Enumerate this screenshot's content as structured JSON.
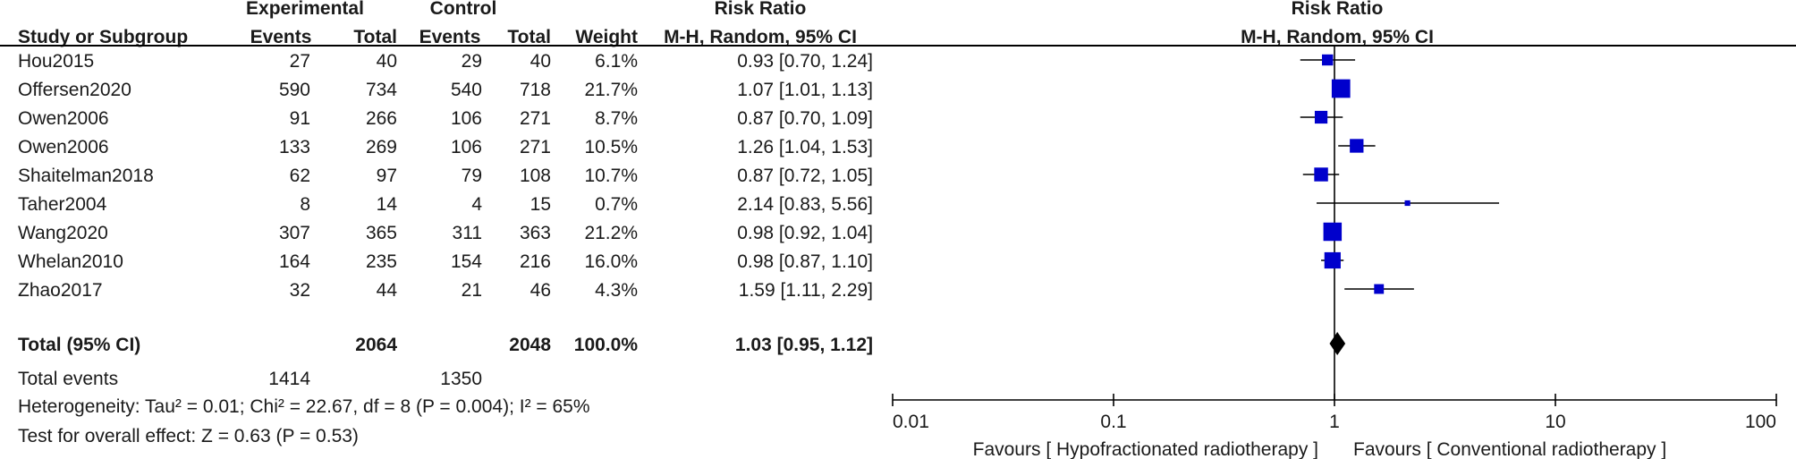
{
  "chart_data": {
    "type": "forest",
    "headers": {
      "study": "Study or Subgroup",
      "experimental_group": "Experimental",
      "control_group": "Control",
      "events": "Events",
      "total": "Total",
      "weight": "Weight",
      "rr_title": "Risk Ratio",
      "rr_method": "M-H, Random, 95% CI",
      "plot_title": "Risk Ratio",
      "plot_method": "M-H, Random, 95% CI"
    },
    "studies": [
      {
        "name": "Hou2015",
        "exp_events": "27",
        "exp_total": "40",
        "ctl_events": "29",
        "ctl_total": "40",
        "weight": "6.1%",
        "ci_text": "0.93 [0.70, 1.24]",
        "rr": 0.93,
        "lo": 0.7,
        "hi": 1.24,
        "w": 6.1
      },
      {
        "name": "Offersen2020",
        "exp_events": "590",
        "exp_total": "734",
        "ctl_events": "540",
        "ctl_total": "718",
        "weight": "21.7%",
        "ci_text": "1.07 [1.01, 1.13]",
        "rr": 1.07,
        "lo": 1.01,
        "hi": 1.13,
        "w": 21.7
      },
      {
        "name": "Owen2006",
        "exp_events": "91",
        "exp_total": "266",
        "ctl_events": "106",
        "ctl_total": "271",
        "weight": "8.7%",
        "ci_text": "0.87 [0.70, 1.09]",
        "rr": 0.87,
        "lo": 0.7,
        "hi": 1.09,
        "w": 8.7
      },
      {
        "name": "Owen2006",
        "exp_events": "133",
        "exp_total": "269",
        "ctl_events": "106",
        "ctl_total": "271",
        "weight": "10.5%",
        "ci_text": "1.26 [1.04, 1.53]",
        "rr": 1.26,
        "lo": 1.04,
        "hi": 1.53,
        "w": 10.5
      },
      {
        "name": "Shaitelman2018",
        "exp_events": "62",
        "exp_total": "97",
        "ctl_events": "79",
        "ctl_total": "108",
        "weight": "10.7%",
        "ci_text": "0.87 [0.72, 1.05]",
        "rr": 0.87,
        "lo": 0.72,
        "hi": 1.05,
        "w": 10.7
      },
      {
        "name": "Taher2004",
        "exp_events": "8",
        "exp_total": "14",
        "ctl_events": "4",
        "ctl_total": "15",
        "weight": "0.7%",
        "ci_text": "2.14 [0.83, 5.56]",
        "rr": 2.14,
        "lo": 0.83,
        "hi": 5.56,
        "w": 0.7
      },
      {
        "name": "Wang2020",
        "exp_events": "307",
        "exp_total": "365",
        "ctl_events": "311",
        "ctl_total": "363",
        "weight": "21.2%",
        "ci_text": "0.98 [0.92, 1.04]",
        "rr": 0.98,
        "lo": 0.92,
        "hi": 1.04,
        "w": 21.2
      },
      {
        "name": "Whelan2010",
        "exp_events": "164",
        "exp_total": "235",
        "ctl_events": "154",
        "ctl_total": "216",
        "weight": "16.0%",
        "ci_text": "0.98 [0.87, 1.10]",
        "rr": 0.98,
        "lo": 0.87,
        "hi": 1.1,
        "w": 16.0
      },
      {
        "name": "Zhao2017",
        "exp_events": "32",
        "exp_total": "44",
        "ctl_events": "21",
        "ctl_total": "46",
        "weight": "4.3%",
        "ci_text": "1.59 [1.11, 2.29]",
        "rr": 1.59,
        "lo": 1.11,
        "hi": 2.29,
        "w": 4.3
      }
    ],
    "total": {
      "label": "Total (95% CI)",
      "exp_total": "2064",
      "ctl_total": "2048",
      "weight": "100.0%",
      "ci_text": "1.03 [0.95, 1.12]",
      "rr": 1.03,
      "lo": 0.95,
      "hi": 1.12
    },
    "total_events": {
      "label": "Total events",
      "exp": "1414",
      "ctl": "1350"
    },
    "heterogeneity": "Heterogeneity: Tau² = 0.01; Chi² = 22.67, df = 8 (P = 0.004); I² = 65%",
    "overall_effect": "Test for overall effect: Z = 0.63 (P = 0.53)",
    "axis": {
      "scale": "log",
      "range": [
        0.01,
        100
      ],
      "ticks": [
        "0.01",
        "0.1",
        "1",
        "10",
        "100"
      ],
      "tick_values": [
        0.01,
        0.1,
        1,
        10,
        100
      ]
    },
    "favours_left": "Favours [ Hypofractionated radiotherapy ]",
    "favours_right": "Favours [ Conventional radiotherapy ]",
    "colors": {
      "marker": "#0000cc",
      "diamond": "#000000",
      "lines": "#000000"
    }
  }
}
